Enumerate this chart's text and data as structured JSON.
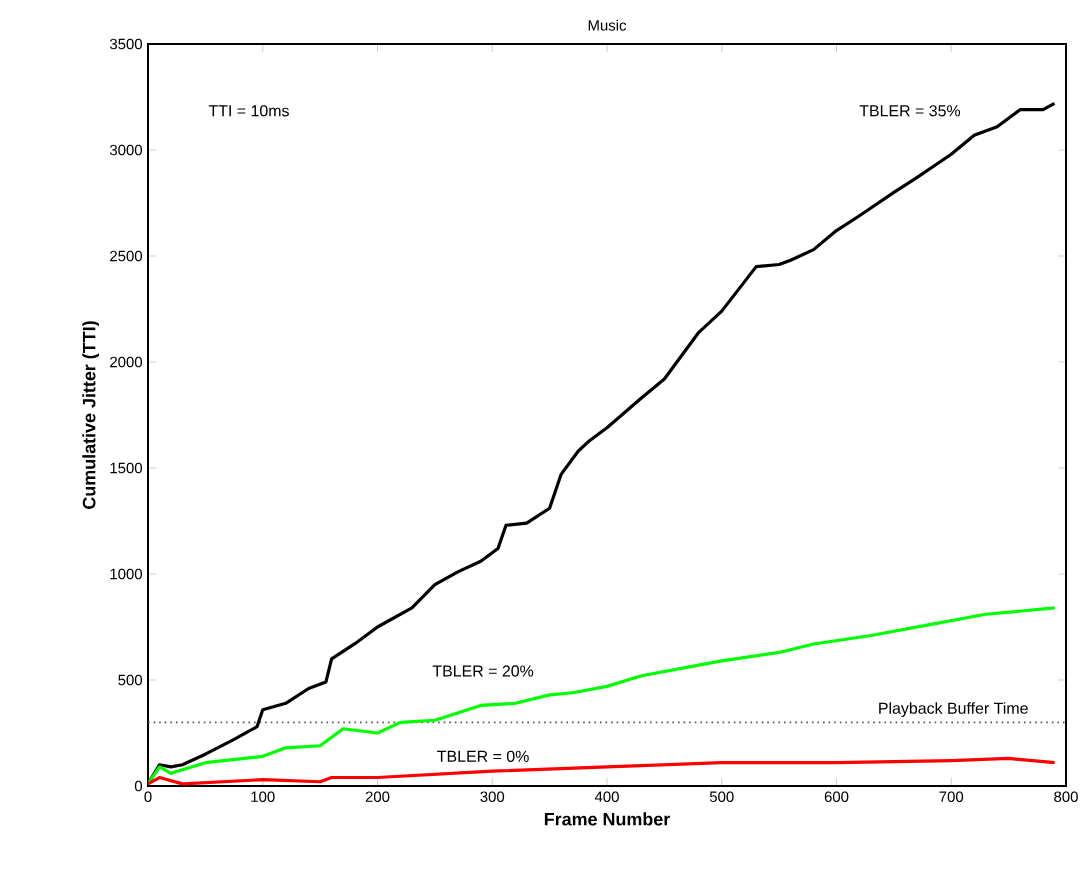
{
  "chart_data": {
    "type": "line",
    "title": "Music",
    "xlabel": "Frame Number",
    "ylabel": "Cumulative Jitter (TTI)",
    "xlim": [
      0,
      800
    ],
    "ylim": [
      0,
      3500
    ],
    "xticks": [
      0,
      100,
      200,
      300,
      400,
      500,
      600,
      700,
      800
    ],
    "yticks": [
      0,
      500,
      1000,
      1500,
      2000,
      2500,
      3000,
      3500
    ],
    "grid": false,
    "marker": "none",
    "line_style": "solid",
    "annotations": [
      "TTI = 10ms"
    ],
    "ref_lines": [
      {
        "axis": "y",
        "value": 300,
        "label": "Playback Buffer Time",
        "color": "#555555",
        "line_style": "dotted"
      }
    ],
    "series": [
      {
        "name": "TBLER = 35%",
        "color": "#000000",
        "x": [
          0,
          10,
          20,
          30,
          50,
          75,
          95,
          100,
          120,
          140,
          155,
          160,
          180,
          200,
          230,
          250,
          270,
          290,
          305,
          312,
          330,
          350,
          360,
          375,
          385,
          400,
          430,
          450,
          480,
          500,
          530,
          550,
          560,
          580,
          600,
          620,
          650,
          670,
          700,
          720,
          740,
          760,
          780,
          790
        ],
        "values": [
          10,
          100,
          90,
          100,
          150,
          220,
          280,
          360,
          390,
          460,
          490,
          600,
          670,
          750,
          840,
          950,
          1010,
          1060,
          1120,
          1230,
          1240,
          1310,
          1470,
          1580,
          1630,
          1690,
          1830,
          1920,
          2140,
          2240,
          2450,
          2460,
          2480,
          2530,
          2620,
          2690,
          2800,
          2870,
          2980,
          3070,
          3110,
          3190,
          3190,
          3220
        ]
      },
      {
        "name": "TBLER = 20%",
        "color": "#00ff00",
        "x": [
          0,
          10,
          20,
          50,
          100,
          120,
          150,
          170,
          200,
          220,
          250,
          290,
          320,
          350,
          370,
          400,
          430,
          480,
          500,
          550,
          580,
          630,
          680,
          730,
          790
        ],
        "values": [
          10,
          90,
          60,
          110,
          140,
          180,
          190,
          270,
          250,
          300,
          310,
          380,
          390,
          430,
          440,
          470,
          520,
          570,
          590,
          630,
          670,
          710,
          760,
          810,
          840
        ]
      },
      {
        "name": "TBLER = 0%",
        "color": "#ff0000",
        "x": [
          0,
          10,
          30,
          100,
          150,
          160,
          200,
          300,
          400,
          500,
          600,
          700,
          750,
          790
        ],
        "values": [
          10,
          40,
          10,
          30,
          20,
          40,
          40,
          70,
          90,
          110,
          110,
          120,
          130,
          110
        ]
      }
    ]
  }
}
